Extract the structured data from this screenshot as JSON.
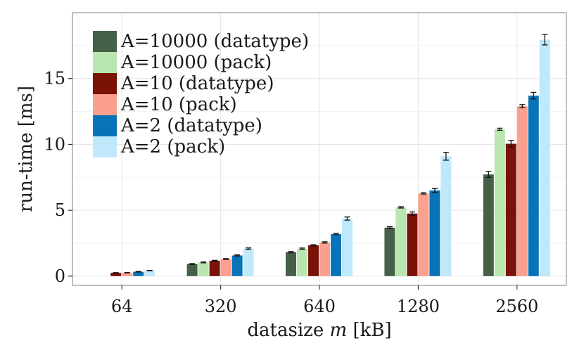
{
  "chart_data": {
    "type": "bar",
    "title": "",
    "xlabel_text": "datasize",
    "xlabel_var": "m",
    "xlabel_unit": "[kB]",
    "ylabel": "run-time [ms]",
    "ylim": [
      -0.7,
      20
    ],
    "yticks": [
      0,
      5,
      10,
      15
    ],
    "grid": true,
    "legend_position": "top-left",
    "categories": [
      "64",
      "320",
      "640",
      "1280",
      "2560"
    ],
    "series": [
      {
        "name": "A=10000 (datatype)",
        "color": "#466048",
        "values": [
          null,
          0.92,
          1.82,
          3.68,
          7.72
        ],
        "errors": [
          null,
          0.03,
          0.05,
          0.07,
          0.22
        ]
      },
      {
        "name": "A=10000 (pack)",
        "color": "#b8e6ae",
        "values": [
          null,
          1.04,
          2.08,
          5.22,
          11.15
        ],
        "errors": [
          null,
          0.03,
          0.05,
          0.05,
          0.08
        ]
      },
      {
        "name": "A=10 (datatype)",
        "color": "#7a1208",
        "values": [
          0.25,
          1.17,
          2.34,
          4.75,
          10.05
        ],
        "errors": [
          0.02,
          0.03,
          0.05,
          0.12,
          0.25
        ]
      },
      {
        "name": "A=10 (pack)",
        "color": "#fba08e",
        "values": [
          0.26,
          1.3,
          2.56,
          6.28,
          12.9
        ],
        "errors": [
          0.02,
          0.03,
          0.05,
          0.05,
          0.12
        ]
      },
      {
        "name": "A=2 (datatype)",
        "color": "#0973b7",
        "values": [
          0.33,
          1.57,
          3.19,
          6.5,
          13.7
        ],
        "errors": [
          0.02,
          0.04,
          0.05,
          0.15,
          0.25
        ]
      },
      {
        "name": "A=2 (pack)",
        "color": "#bfe9fa",
        "values": [
          0.42,
          2.09,
          4.37,
          9.1,
          17.95
        ],
        "errors": [
          0.02,
          0.05,
          0.12,
          0.3,
          0.4
        ]
      }
    ]
  }
}
